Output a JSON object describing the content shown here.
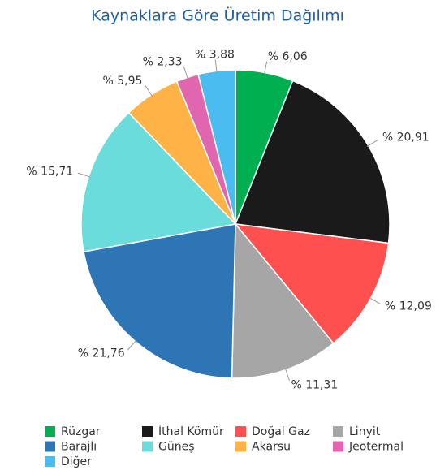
{
  "chart_data": {
    "type": "pie",
    "title": "Kaynaklara Göre Üretim Dağılımı",
    "categories": [
      "Rüzgar",
      "İthal Kömür",
      "Doğal Gaz",
      "Linyit",
      "Barajlı",
      "Güneş",
      "Akarsu",
      "Jeotermal",
      "Diğer"
    ],
    "values": [
      6.06,
      20.91,
      12.09,
      11.31,
      21.76,
      15.71,
      5.95,
      2.33,
      3.88
    ],
    "value_labels": [
      "% 6,06",
      "% 20,91",
      "% 12,09",
      "% 11,31",
      "% 21,76",
      "% 15,71",
      "% 5,95",
      "% 2,33",
      "% 3,88"
    ],
    "colors": [
      "#00b050",
      "#1a1a1a",
      "#ff5050",
      "#a6a6a6",
      "#2e75b6",
      "#6bdcdc",
      "#ffb347",
      "#e066b0",
      "#4bbcf0"
    ]
  }
}
